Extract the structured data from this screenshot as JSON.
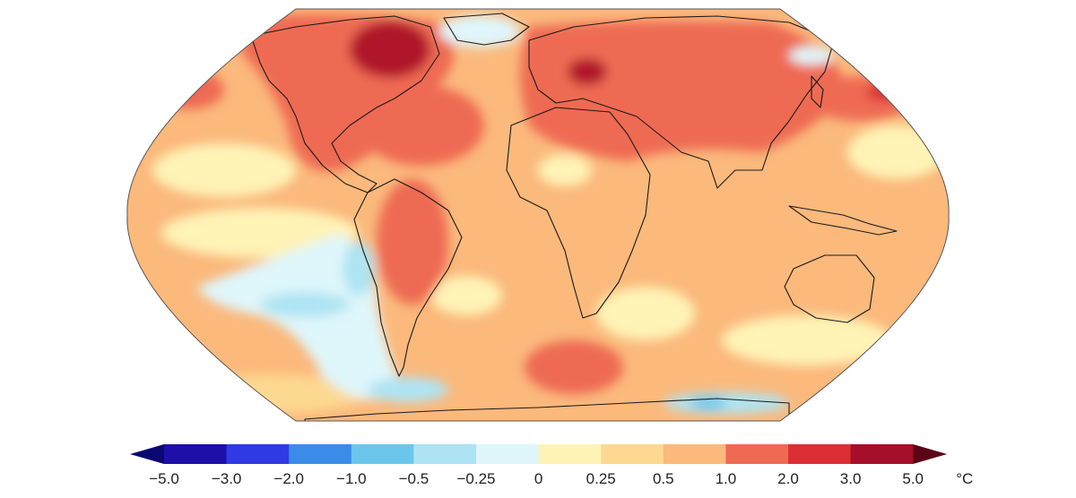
{
  "map": {
    "projection": "robinson-like",
    "ocean_base_color": "#fbb97c",
    "anomaly_regions": [
      {
        "id": "arctic-canada",
        "bin": "3.0–5.0",
        "color": "#b0122b"
      },
      {
        "id": "north-america-west",
        "bin": "1.0–2.0",
        "color": "#ee6a52"
      },
      {
        "id": "north-atlantic",
        "bin": "1.0–2.0",
        "color": "#ee6a52"
      },
      {
        "id": "europe-russia",
        "bin": "1.0–2.0",
        "color": "#ee6a52"
      },
      {
        "id": "russia-core",
        "bin": "2.0–3.0",
        "color": "#dc2e35"
      },
      {
        "id": "north-pacific-east",
        "bin": "2.0–3.0",
        "color": "#dc2e35"
      },
      {
        "id": "north-pacific-west",
        "bin": "2.0–3.0",
        "color": "#dc2e35"
      },
      {
        "id": "greenland-east",
        "bin": "-0.25–0",
        "color": "#dff6fb"
      },
      {
        "id": "south-pacific",
        "bin": "-0.5 – -0.25",
        "color": "#aee4f3"
      },
      {
        "id": "southern-ocean-patches",
        "bin": "-1.0 – -0.5",
        "color": "#6cc6ec"
      },
      {
        "id": "south-atlantic-warm",
        "bin": "1.0–2.0",
        "color": "#ee6a52"
      },
      {
        "id": "subtropical-pale",
        "bin": "0–0.25",
        "color": "#fff3b6"
      }
    ]
  },
  "colorbar": {
    "unit": "°C",
    "segments": [
      {
        "color": "#1d0fa8"
      },
      {
        "color": "#2f3ae5"
      },
      {
        "color": "#3b8be8"
      },
      {
        "color": "#6cc6ec"
      },
      {
        "color": "#aee4f3"
      },
      {
        "color": "#dff6fb"
      },
      {
        "color": "#fff3b6"
      },
      {
        "color": "#fdd890"
      },
      {
        "color": "#fbb97c"
      },
      {
        "color": "#ee6a52"
      },
      {
        "color": "#dc2e35"
      },
      {
        "color": "#a50f2a"
      }
    ],
    "under_color": "#0a0870",
    "over_color": "#5a0416",
    "tick_labels": [
      "−5.0",
      "−3.0",
      "−2.0",
      "−1.0",
      "−0.5",
      "−0.25",
      "0",
      "0.25",
      "0.5",
      "1.0",
      "2.0",
      "3.0",
      "5.0"
    ]
  }
}
